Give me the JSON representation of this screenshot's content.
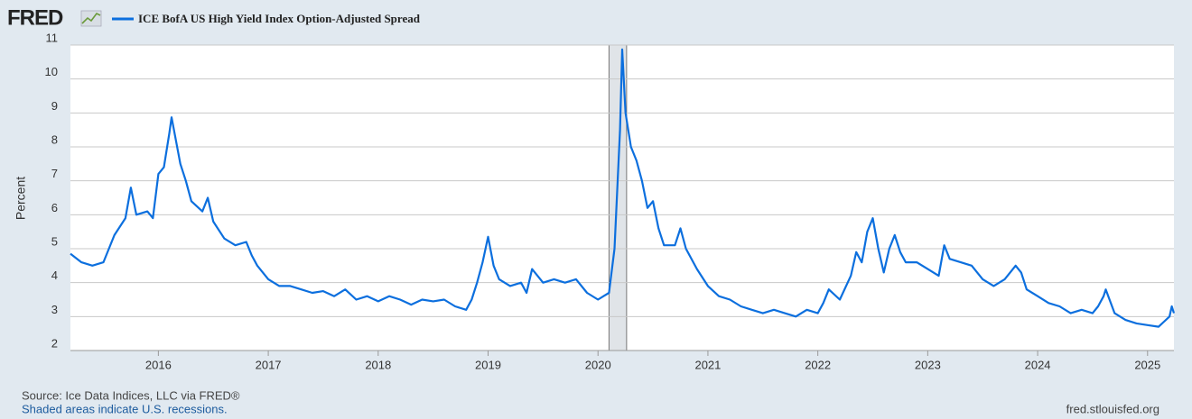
{
  "logo": "FRED",
  "source": "Source: Ice Data Indices, LLC via FRED®",
  "recession_note": "Shaded areas indicate U.S. recessions.",
  "url": "fred.stlouisfed.org",
  "chart_data": {
    "type": "line",
    "y_label": "Percent",
    "xlim": [
      2015.2,
      2025.24
    ],
    "xticks": [
      2016,
      2017,
      2018,
      2019,
      2020,
      2021,
      2022,
      2023,
      2024,
      2025
    ],
    "ylim": [
      2,
      11
    ],
    "yticks": [
      2,
      3,
      4,
      5,
      6,
      7,
      8,
      9,
      10,
      11
    ],
    "grid": true,
    "shaded_ranges": [
      [
        2020.1,
        2020.26
      ]
    ],
    "x": [
      2015.2,
      2015.3,
      2015.4,
      2015.5,
      2015.55,
      2015.6,
      2015.7,
      2015.75,
      2015.8,
      2015.9,
      2015.95,
      2016.0,
      2016.05,
      2016.1,
      2016.12,
      2016.2,
      2016.25,
      2016.3,
      2016.4,
      2016.45,
      2016.5,
      2016.6,
      2016.7,
      2016.8,
      2016.85,
      2016.9,
      2017.0,
      2017.1,
      2017.2,
      2017.3,
      2017.4,
      2017.5,
      2017.6,
      2017.7,
      2017.8,
      2017.9,
      2018.0,
      2018.1,
      2018.2,
      2018.3,
      2018.4,
      2018.5,
      2018.6,
      2018.7,
      2018.8,
      2018.85,
      2018.9,
      2018.95,
      2019.0,
      2019.05,
      2019.1,
      2019.2,
      2019.3,
      2019.35,
      2019.4,
      2019.5,
      2019.6,
      2019.7,
      2019.8,
      2019.9,
      2020.0,
      2020.05,
      2020.1,
      2020.15,
      2020.2,
      2020.22,
      2020.25,
      2020.3,
      2020.35,
      2020.4,
      2020.45,
      2020.5,
      2020.55,
      2020.6,
      2020.7,
      2020.75,
      2020.8,
      2020.9,
      2021.0,
      2021.1,
      2021.2,
      2021.3,
      2021.4,
      2021.5,
      2021.6,
      2021.7,
      2021.8,
      2021.9,
      2022.0,
      2022.05,
      2022.1,
      2022.2,
      2022.3,
      2022.35,
      2022.4,
      2022.45,
      2022.5,
      2022.55,
      2022.6,
      2022.65,
      2022.7,
      2022.75,
      2022.8,
      2022.9,
      2023.0,
      2023.1,
      2023.15,
      2023.2,
      2023.3,
      2023.4,
      2023.5,
      2023.6,
      2023.7,
      2023.8,
      2023.85,
      2023.9,
      2024.0,
      2024.1,
      2024.2,
      2024.3,
      2024.4,
      2024.5,
      2024.55,
      2024.6,
      2024.62,
      2024.7,
      2024.8,
      2024.9,
      2025.0,
      2025.1,
      2025.15,
      2025.2,
      2025.22,
      2025.24
    ],
    "series": [
      {
        "name": "ICE BofA US High Yield Index Option-Adjusted Spread",
        "color": "#0c6fde",
        "values": [
          4.85,
          4.6,
          4.5,
          4.6,
          5.0,
          5.4,
          5.9,
          6.8,
          6.0,
          6.1,
          5.9,
          7.2,
          7.4,
          8.4,
          8.87,
          7.5,
          7.0,
          6.4,
          6.1,
          6.5,
          5.8,
          5.3,
          5.1,
          5.2,
          4.8,
          4.5,
          4.1,
          3.9,
          3.9,
          3.8,
          3.7,
          3.75,
          3.6,
          3.8,
          3.5,
          3.6,
          3.45,
          3.6,
          3.5,
          3.35,
          3.5,
          3.45,
          3.5,
          3.3,
          3.2,
          3.5,
          4.0,
          4.6,
          5.35,
          4.5,
          4.1,
          3.9,
          4.0,
          3.7,
          4.4,
          4.0,
          4.1,
          4.0,
          4.1,
          3.7,
          3.5,
          3.6,
          3.7,
          5.0,
          8.5,
          10.87,
          9.0,
          8.0,
          7.6,
          7.0,
          6.2,
          6.4,
          5.6,
          5.1,
          5.1,
          5.6,
          5.0,
          4.4,
          3.9,
          3.6,
          3.5,
          3.3,
          3.2,
          3.1,
          3.2,
          3.1,
          3.0,
          3.2,
          3.1,
          3.4,
          3.8,
          3.5,
          4.2,
          4.9,
          4.6,
          5.5,
          5.9,
          5.0,
          4.3,
          5.0,
          5.4,
          4.9,
          4.6,
          4.6,
          4.4,
          4.2,
          5.1,
          4.7,
          4.6,
          4.5,
          4.1,
          3.9,
          4.1,
          4.5,
          4.3,
          3.8,
          3.6,
          3.4,
          3.3,
          3.1,
          3.2,
          3.1,
          3.3,
          3.6,
          3.8,
          3.1,
          2.9,
          2.8,
          2.75,
          2.7,
          2.85,
          3.0,
          3.3,
          3.1
        ]
      }
    ]
  }
}
